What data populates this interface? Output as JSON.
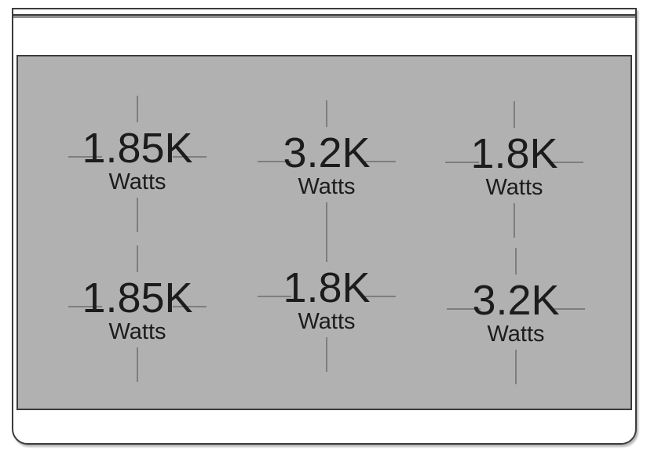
{
  "diagram": {
    "type": "cooktop-burner-wattage-diagram",
    "burners": [
      {
        "position": "top-left",
        "power": "1.85K",
        "unit": "Watts"
      },
      {
        "position": "top-center",
        "power": "3.2K",
        "unit": "Watts"
      },
      {
        "position": "top-right",
        "power": "1.8K",
        "unit": "Watts"
      },
      {
        "position": "bottom-left",
        "power": "1.85K",
        "unit": "Watts"
      },
      {
        "position": "bottom-center",
        "power": "1.8K",
        "unit": "Watts"
      },
      {
        "position": "bottom-right",
        "power": "3.2K",
        "unit": "Watts"
      }
    ],
    "colors": {
      "surface": "#b1b1b1",
      "crosshair": "#7e7e7e",
      "outline": "#3c3c3c",
      "text": "#1c1c1c",
      "background": "#ffffff"
    }
  }
}
